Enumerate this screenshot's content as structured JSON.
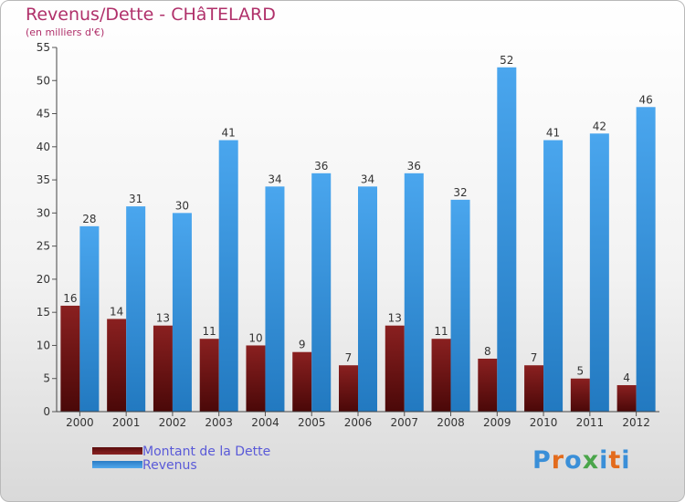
{
  "title": "Revenus/Dette - CHâTELARD",
  "subtitle": "(en milliers d'€)",
  "logo_text": "Proxiti",
  "colors": {
    "dette": "#7a1a1a",
    "revenus": "#3f97dd",
    "title": "#b0306a",
    "legend_text": "#5a5ad8"
  },
  "chart_data": {
    "type": "bar",
    "title": "Revenus/Dette - CHâTELARD",
    "subtitle": "(en milliers d'€)",
    "xlabel": "",
    "ylabel": "",
    "categories": [
      "2000",
      "2001",
      "2002",
      "2003",
      "2004",
      "2005",
      "2006",
      "2007",
      "2008",
      "2009",
      "2010",
      "2011",
      "2012"
    ],
    "series": [
      {
        "name": "Montant de la Dette",
        "color": "#7a1a1a",
        "values": [
          16,
          14,
          13,
          11,
          10,
          9,
          7,
          13,
          11,
          8,
          7,
          5,
          4
        ]
      },
      {
        "name": "Revenus",
        "color": "#3f97dd",
        "values": [
          28,
          31,
          30,
          41,
          34,
          36,
          34,
          36,
          32,
          52,
          41,
          42,
          46
        ]
      }
    ],
    "ylim": [
      0,
      55
    ],
    "yticks": [
      0,
      5,
      10,
      15,
      20,
      25,
      30,
      35,
      40,
      45,
      50,
      55
    ],
    "grid": false,
    "legend": "bottom-left"
  }
}
